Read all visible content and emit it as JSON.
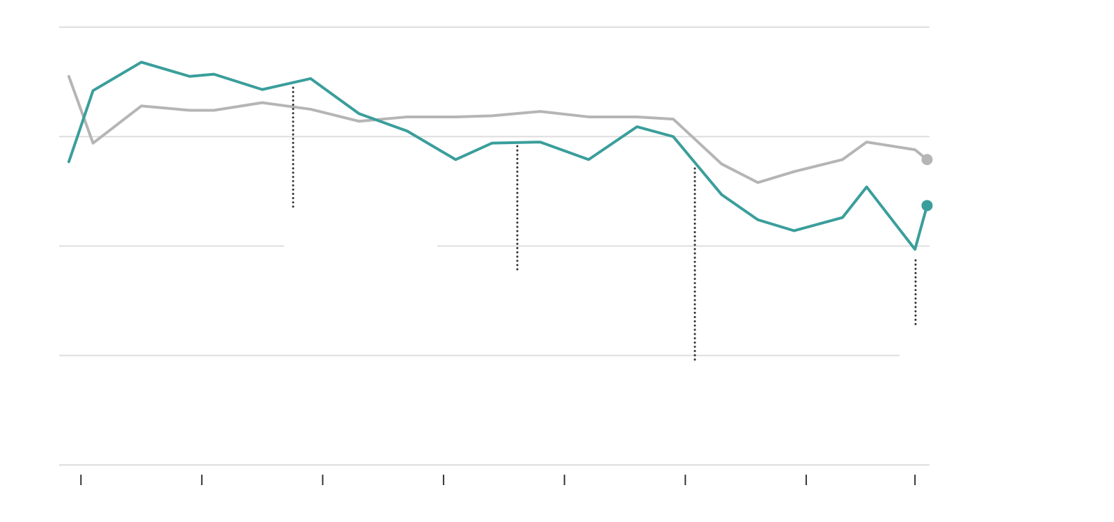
{
  "chart_data": {
    "type": "line",
    "x": [
      -0.1,
      0.1,
      0.5,
      0.9,
      1.1,
      1.5,
      1.9,
      2.3,
      2.7,
      3.1,
      3.4,
      3.8,
      4.2,
      4.6,
      4.9,
      5.3,
      5.6,
      5.9,
      6.3,
      6.5,
      6.9,
      7.0
    ],
    "series": [
      {
        "color": "#b5b5b5",
        "values": [
          3.55,
          2.94,
          3.28,
          3.24,
          3.24,
          3.31,
          3.25,
          3.14,
          3.18,
          3.18,
          3.19,
          3.23,
          3.18,
          3.18,
          3.16,
          2.75,
          2.58,
          2.68,
          2.79,
          2.95,
          2.88,
          2.79
        ]
      },
      {
        "color": "#3a9e9b",
        "values": [
          2.77,
          3.42,
          3.68,
          3.55,
          3.57,
          3.43,
          3.53,
          3.21,
          3.05,
          2.79,
          2.94,
          2.95,
          2.79,
          3.09,
          3.0,
          2.47,
          2.24,
          2.14,
          2.26,
          2.54,
          1.97,
          2.37
        ]
      }
    ],
    "xlim": [
      -0.18,
      7.02
    ],
    "xticks": [
      0,
      1,
      2,
      3,
      4,
      5,
      6,
      6.9
    ],
    "ylim": [
      0,
      4
    ],
    "yticks": [
      0,
      1,
      2,
      3,
      4
    ],
    "grid": true
  }
}
